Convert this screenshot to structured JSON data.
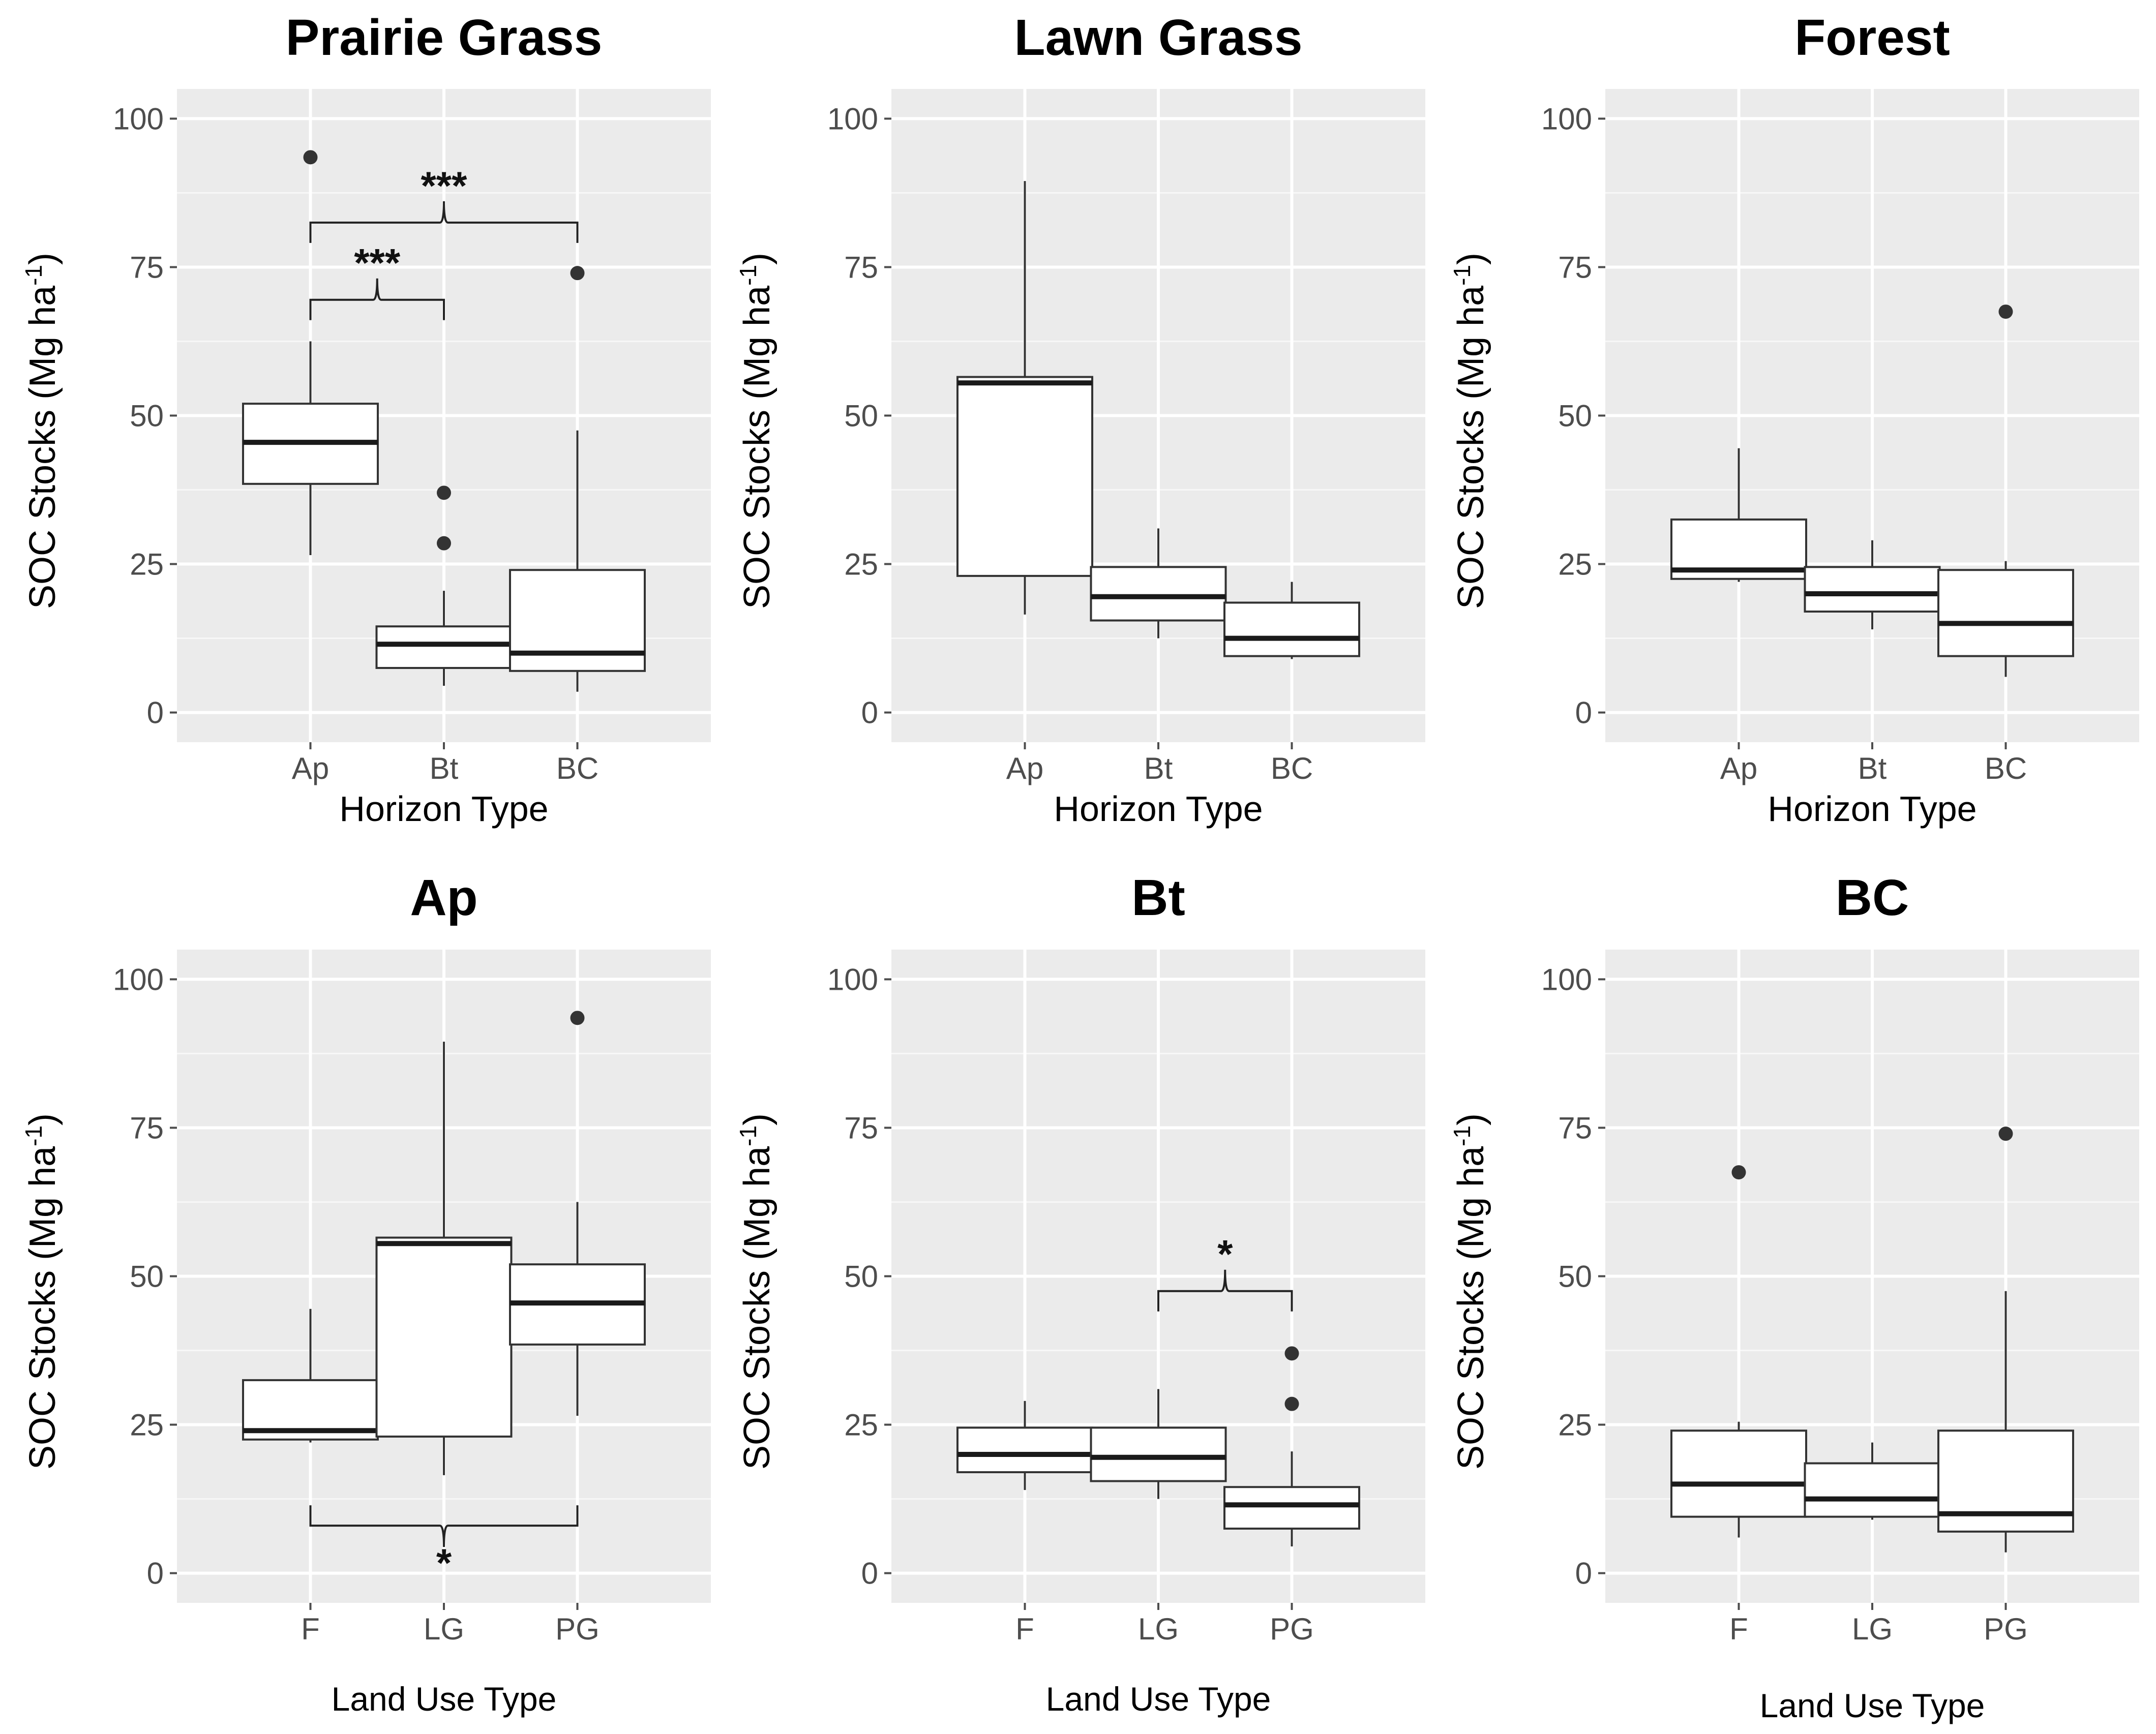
{
  "chart_data": [
    {
      "type": "box",
      "title": "Prairie Grass",
      "xlabel": "Horizon Type",
      "ylabel": "SOC Stocks (Mg ha",
      "ylabel_sup": "-1",
      "ylabel_close": ")",
      "ylim": [
        -5,
        105
      ],
      "yticks": [
        "0",
        "25",
        "50",
        "75",
        "100"
      ],
      "categories": [
        "Ap",
        "Bt",
        "BC"
      ],
      "boxes": [
        {
          "q1": 38.5,
          "median": 45.5,
          "q3": 52,
          "low": 26.5,
          "high": 62.5,
          "outliers": [
            93.5
          ]
        },
        {
          "q1": 7.5,
          "median": 11.5,
          "q3": 14.5,
          "low": 4.5,
          "high": 20.5,
          "outliers": [
            37,
            28.5
          ]
        },
        {
          "q1": 7,
          "median": 10,
          "q3": 24,
          "low": 3.5,
          "high": 47.5,
          "outliers": [
            74
          ]
        }
      ],
      "brackets": [
        {
          "from": 0,
          "to": 1,
          "y": 69.5,
          "label": "***",
          "position": "above"
        },
        {
          "from": 0,
          "to": 2,
          "y": 82.5,
          "label": "***",
          "position": "above"
        }
      ]
    },
    {
      "type": "box",
      "title": "Lawn Grass",
      "xlabel": "Horizon Type",
      "ylabel": "SOC Stocks (Mg ha",
      "ylabel_sup": "-1",
      "ylabel_close": ")",
      "ylim": [
        -5,
        105
      ],
      "yticks": [
        "0",
        "25",
        "50",
        "75",
        "100"
      ],
      "categories": [
        "Ap",
        "Bt",
        "BC"
      ],
      "boxes": [
        {
          "q1": 23,
          "median": 55.5,
          "q3": 56.5,
          "low": 16.5,
          "high": 89.5,
          "outliers": []
        },
        {
          "q1": 15.5,
          "median": 19.5,
          "q3": 24.5,
          "low": 12.5,
          "high": 31,
          "outliers": []
        },
        {
          "q1": 9.5,
          "median": 12.5,
          "q3": 18.5,
          "low": 9,
          "high": 22,
          "outliers": []
        }
      ],
      "brackets": []
    },
    {
      "type": "box",
      "title": "Forest",
      "xlabel": "Horizon Type",
      "ylabel": "SOC Stocks (Mg ha",
      "ylabel_sup": "-1",
      "ylabel_close": ")",
      "ylim": [
        -5,
        105
      ],
      "yticks": [
        "0",
        "25",
        "50",
        "75",
        "100"
      ],
      "categories": [
        "Ap",
        "Bt",
        "BC"
      ],
      "boxes": [
        {
          "q1": 22.5,
          "median": 24,
          "q3": 32.5,
          "low": 22,
          "high": 44.5,
          "outliers": []
        },
        {
          "q1": 17,
          "median": 20,
          "q3": 24.5,
          "low": 14,
          "high": 29,
          "outliers": []
        },
        {
          "q1": 9.5,
          "median": 15,
          "q3": 24,
          "low": 6,
          "high": 25.5,
          "outliers": [
            67.5
          ]
        }
      ],
      "brackets": []
    },
    {
      "type": "box",
      "title": "Ap",
      "xlabel": "Land Use Type",
      "ylabel": "SOC Stocks (Mg ha",
      "ylabel_sup": "-1",
      "ylabel_close": ")",
      "ylim": [
        -5,
        105
      ],
      "yticks": [
        "0",
        "25",
        "50",
        "75",
        "100"
      ],
      "categories": [
        "F",
        "LG",
        "PG"
      ],
      "boxes": [
        {
          "q1": 22.5,
          "median": 24,
          "q3": 32.5,
          "low": 22,
          "high": 44.5,
          "outliers": []
        },
        {
          "q1": 23,
          "median": 55.5,
          "q3": 56.5,
          "low": 16.5,
          "high": 89.5,
          "outliers": []
        },
        {
          "q1": 38.5,
          "median": 45.5,
          "q3": 52,
          "low": 26.5,
          "high": 62.5,
          "outliers": [
            93.5
          ]
        }
      ],
      "brackets": [
        {
          "from": 0,
          "to": 2,
          "y": 8,
          "label": "*",
          "position": "below"
        }
      ]
    },
    {
      "type": "box",
      "title": "Bt",
      "xlabel": "Land Use Type",
      "ylabel": "SOC Stocks (Mg ha",
      "ylabel_sup": "-1",
      "ylabel_close": ")",
      "ylim": [
        -5,
        105
      ],
      "yticks": [
        "0",
        "25",
        "50",
        "75",
        "100"
      ],
      "categories": [
        "F",
        "LG",
        "PG"
      ],
      "boxes": [
        {
          "q1": 17,
          "median": 20,
          "q3": 24.5,
          "low": 14,
          "high": 29,
          "outliers": []
        },
        {
          "q1": 15.5,
          "median": 19.5,
          "q3": 24.5,
          "low": 12.5,
          "high": 31,
          "outliers": []
        },
        {
          "q1": 7.5,
          "median": 11.5,
          "q3": 14.5,
          "low": 4.5,
          "high": 20.5,
          "outliers": [
            37,
            28.5
          ]
        }
      ],
      "brackets": [
        {
          "from": 1,
          "to": 2,
          "y": 47.5,
          "label": "*",
          "position": "above"
        }
      ]
    },
    {
      "type": "box",
      "title": "BC",
      "xlabel": "Land Use Type",
      "ylabel": "SOC Stocks (Mg ha",
      "ylabel_sup": "-1",
      "ylabel_close": ")",
      "ylim": [
        -5,
        105
      ],
      "yticks": [
        "0",
        "25",
        "50",
        "75",
        "100"
      ],
      "categories": [
        "F",
        "LG",
        "PG"
      ],
      "boxes": [
        {
          "q1": 9.5,
          "median": 15,
          "q3": 24,
          "low": 6,
          "high": 25.5,
          "outliers": [
            67.5
          ]
        },
        {
          "q1": 9.5,
          "median": 12.5,
          "q3": 18.5,
          "low": 9,
          "high": 22,
          "outliers": []
        },
        {
          "q1": 7,
          "median": 10,
          "q3": 24,
          "low": 3.5,
          "high": 47.5,
          "outliers": [
            74
          ]
        }
      ],
      "brackets": []
    }
  ]
}
